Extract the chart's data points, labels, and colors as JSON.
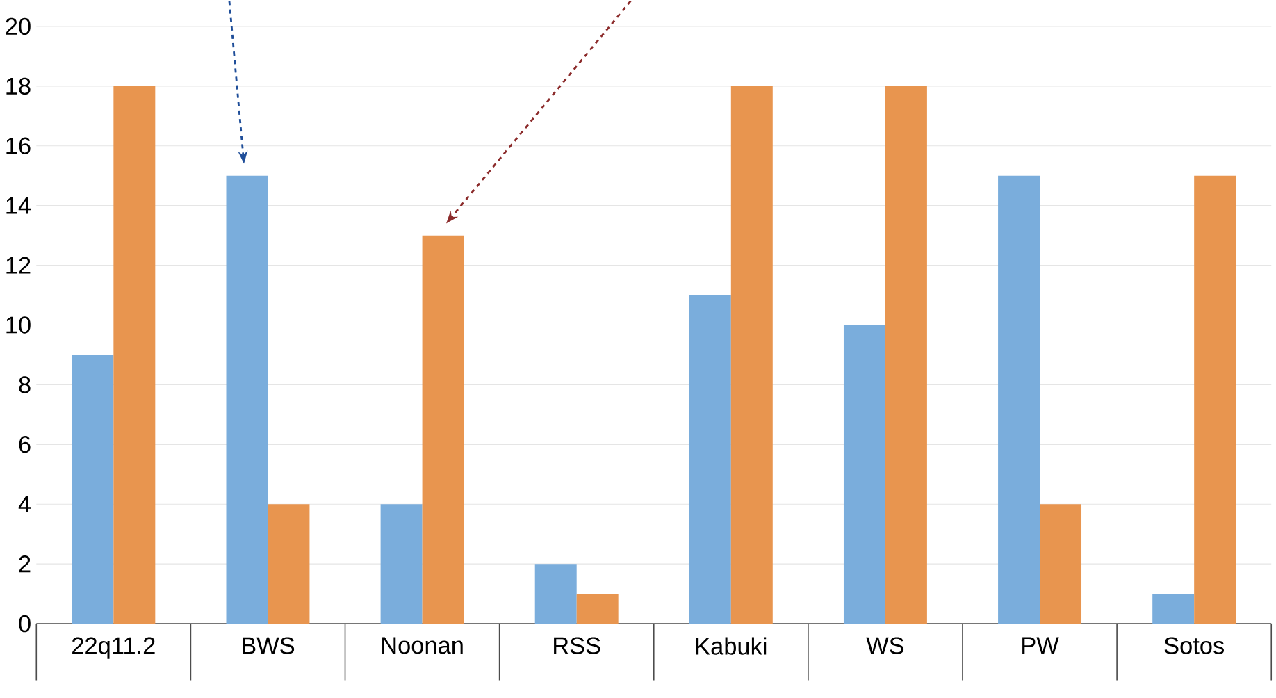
{
  "chart_data": {
    "type": "bar",
    "categories": [
      "22q11.2",
      "BWS",
      "Noonan",
      "RSS",
      "Kabuki",
      "WS",
      "PW",
      "Sotos"
    ],
    "series": [
      {
        "color": "#7aaddc",
        "values": [
          9,
          15,
          4,
          2,
          11,
          10,
          15,
          1
        ]
      },
      {
        "color": "#e8954f",
        "values": [
          18,
          4,
          13,
          1,
          18,
          18,
          4,
          15
        ]
      }
    ],
    "ylim": [
      0,
      20
    ],
    "yticks": [
      0,
      2,
      4,
      6,
      8,
      10,
      12,
      14,
      16,
      18,
      20
    ],
    "grid": "y"
  }
}
